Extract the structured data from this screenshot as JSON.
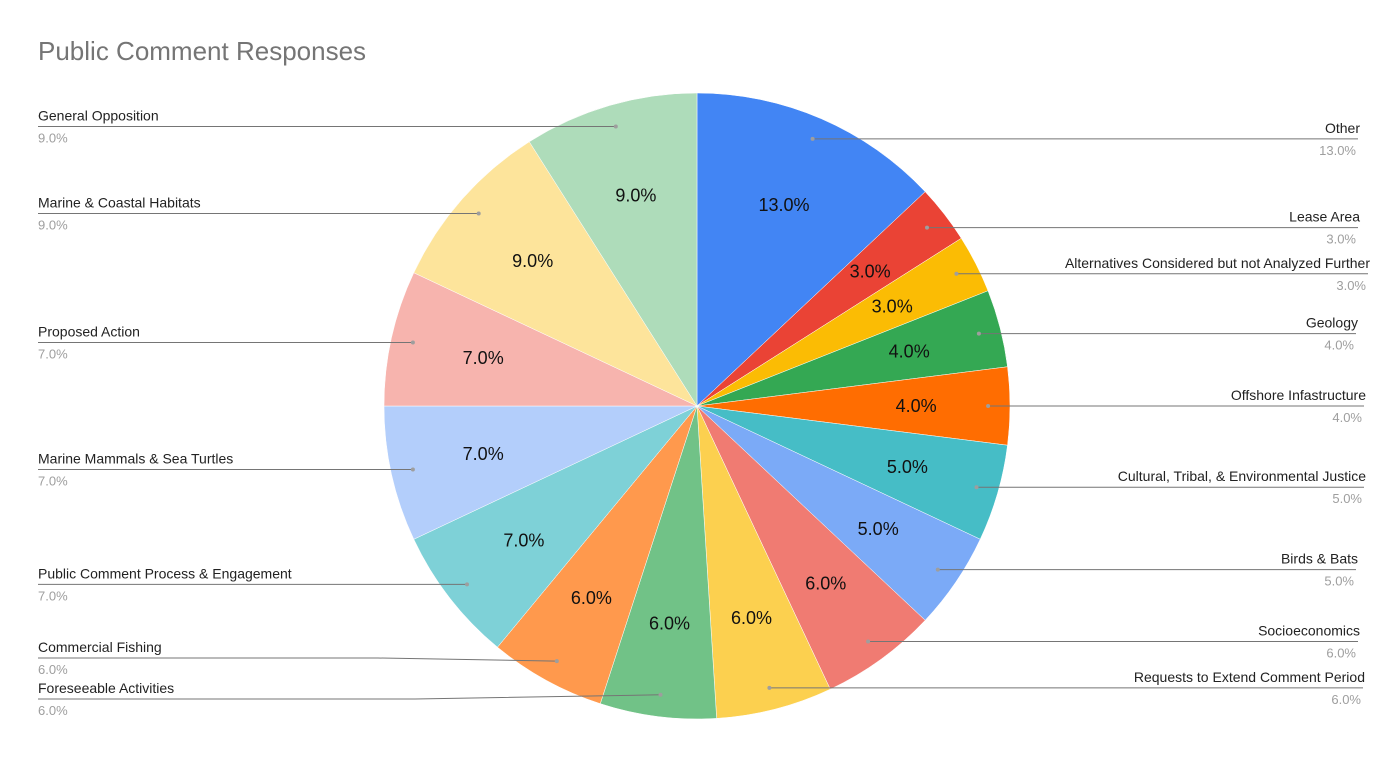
{
  "chart_data": {
    "type": "pie",
    "title": "Public Comment Responses",
    "legend_position": "labels outside with leader lines",
    "slices": [
      {
        "label": "Other",
        "value": 13.0,
        "display": "13.0%",
        "color": "#4285f4"
      },
      {
        "label": "Lease Area",
        "value": 3.0,
        "display": "3.0%",
        "color": "#ea4335"
      },
      {
        "label": "Alternatives Considered but not Analyzed Further",
        "value": 3.0,
        "display": "3.0%",
        "color": "#fbbc04"
      },
      {
        "label": "Geology",
        "value": 4.0,
        "display": "4.0%",
        "color": "#34a853"
      },
      {
        "label": "Offshore Infastructure",
        "value": 4.0,
        "display": "4.0%",
        "color": "#ff6d01"
      },
      {
        "label": "Cultural, Tribal, & Environmental Justice",
        "value": 5.0,
        "display": "5.0%",
        "color": "#46bdc6"
      },
      {
        "label": "Birds & Bats",
        "value": 5.0,
        "display": "5.0%",
        "color": "#7baaf7"
      },
      {
        "label": "Socioeconomics",
        "value": 6.0,
        "display": "6.0%",
        "color": "#f07b72"
      },
      {
        "label": "Requests to Extend Comment Period",
        "value": 6.0,
        "display": "6.0%",
        "color": "#fcd04f"
      },
      {
        "label": "Foreseeable Activities",
        "value": 6.0,
        "display": "6.0%",
        "color": "#71c287"
      },
      {
        "label": "Commercial Fishing",
        "value": 6.0,
        "display": "6.0%",
        "color": "#ff994d"
      },
      {
        "label": "Public Comment Process & Engagement",
        "value": 7.0,
        "display": "7.0%",
        "color": "#7ed1d7"
      },
      {
        "label": "Marine Mammals & Sea Turtles",
        "value": 7.0,
        "display": "7.0%",
        "color": "#b3cefb"
      },
      {
        "label": "Proposed Action",
        "value": 7.0,
        "display": "7.0%",
        "color": "#f7b4ae"
      },
      {
        "label": "Marine & Coastal Habitats",
        "value": 9.0,
        "display": "9.0%",
        "color": "#fde49b"
      },
      {
        "label": "General Opposition",
        "value": 9.0,
        "display": "9.0%",
        "color": "#aedcba"
      }
    ]
  }
}
